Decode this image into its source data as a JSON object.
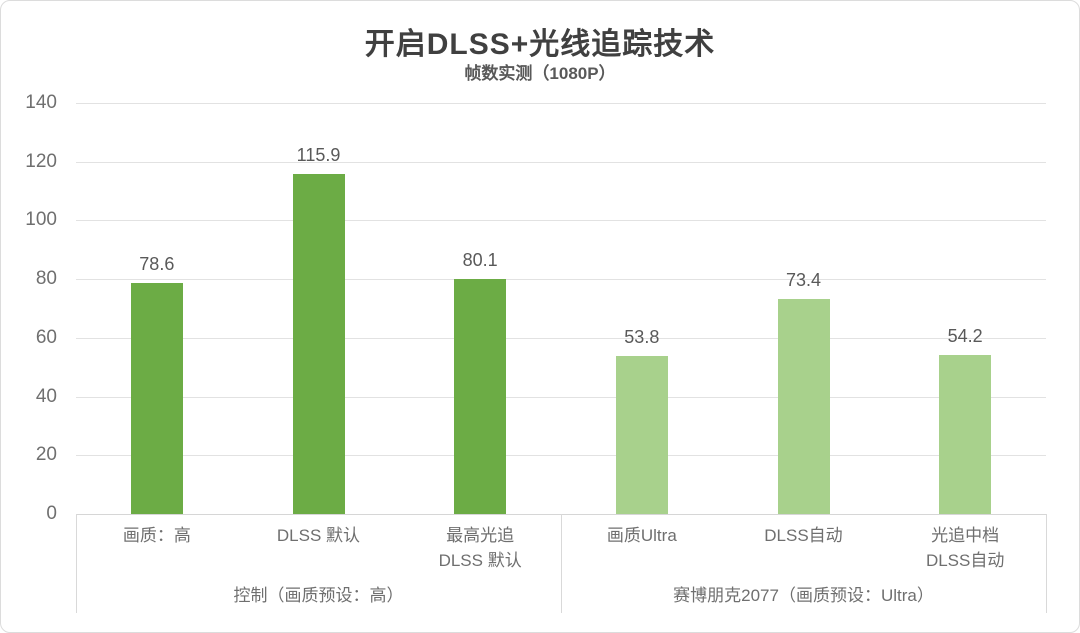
{
  "title": "开启DLSS+光线追踪技术",
  "subtitle": "帧数实测（1080P）",
  "chart_data": {
    "type": "bar",
    "categories": [
      "画质：高",
      "DLSS 默认",
      "最高光追\nDLSS 默认",
      "画质Ultra",
      "DLSS自动",
      "光追中档\nDLSS自动"
    ],
    "values": [
      78.6,
      115.9,
      80.1,
      53.8,
      73.4,
      54.2
    ],
    "data_labels": [
      "78.6",
      "115.9",
      "80.1",
      "53.8",
      "73.4",
      "54.2"
    ],
    "series": [
      {
        "name": "控制（画质预设：高）",
        "indices": [
          0,
          1,
          2
        ],
        "color": "#6CAC45"
      },
      {
        "name": "赛博朋克2077（画质预设：Ultra）",
        "indices": [
          3,
          4,
          5
        ],
        "color": "#A8D18C"
      }
    ],
    "groups": [
      {
        "label": "控制（画质预设：高）",
        "span": [
          0,
          3
        ]
      },
      {
        "label": "赛博朋克2077（画质预设：Ultra）",
        "span": [
          3,
          6
        ]
      }
    ],
    "title": "开启DLSS+光线追踪技术",
    "subtitle": "帧数实测（1080P）",
    "xlabel": "",
    "ylabel": "",
    "ylim": [
      0,
      140
    ],
    "yticks": [
      0,
      20,
      40,
      60,
      80,
      100,
      120,
      140
    ],
    "grid": true,
    "legend": "none"
  },
  "colors": {
    "bar_dark_green": "#6CAC45",
    "bar_light_green": "#A8D18C",
    "gridline": "#e2e2e2",
    "axis_line": "#d9d9d9",
    "title_text": "#404040",
    "label_text": "#595959",
    "tick_text": "#6f6f6f",
    "frame_border": "#dcdcdc"
  }
}
